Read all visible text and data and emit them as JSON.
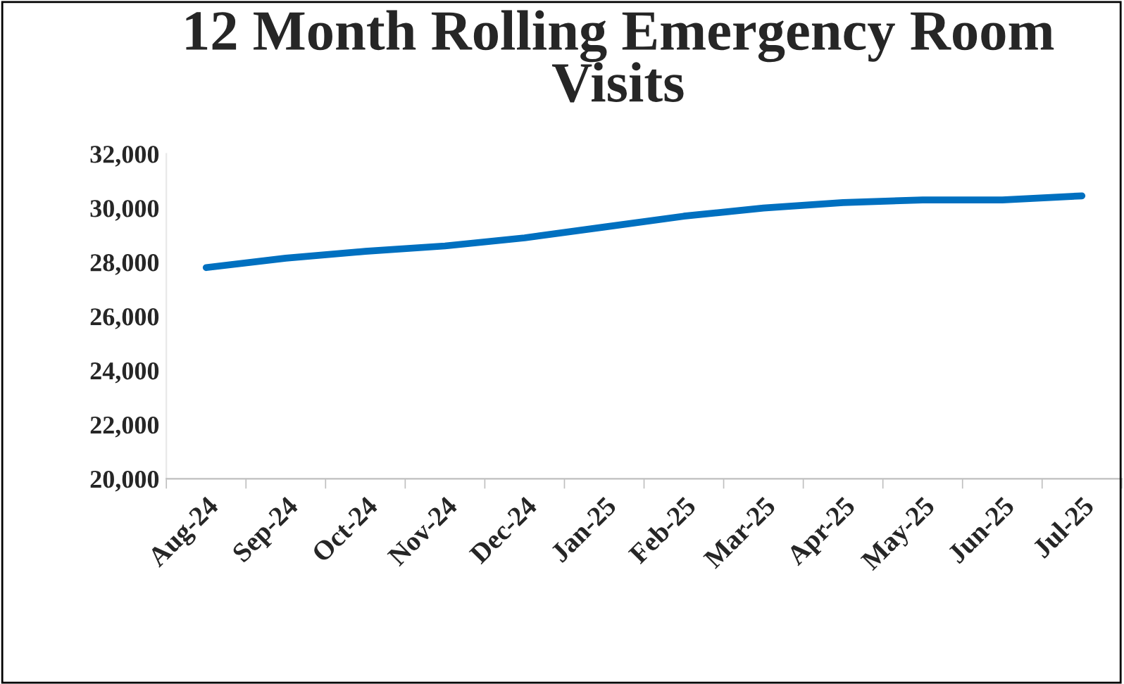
{
  "chart_data": {
    "type": "line",
    "title": "12 Month Rolling Emergency Room Visits",
    "categories": [
      "Aug-24",
      "Sep-24",
      "Oct-24",
      "Nov-24",
      "Dec-24",
      "Jan-25",
      "Feb-25",
      "Mar-25",
      "Apr-25",
      "May-25",
      "Jun-25",
      "Jul-25"
    ],
    "series": [
      {
        "color": "#0070c0",
        "values": [
          27800,
          28150,
          28400,
          28600,
          28900,
          29300,
          29700,
          30000,
          30200,
          30300,
          30300,
          30450
        ]
      }
    ],
    "ylim": [
      20000,
      32000
    ],
    "yticks": [
      {
        "value": 20000,
        "label": "20,000"
      },
      {
        "value": 22000,
        "label": "22,000"
      },
      {
        "value": 24000,
        "label": "24,000"
      },
      {
        "value": 26000,
        "label": "26,000"
      },
      {
        "value": 28000,
        "label": "28,000"
      },
      {
        "value": 30000,
        "label": "30,000"
      },
      {
        "value": 32000,
        "label": "32,000"
      }
    ],
    "grid": false,
    "marker": "none",
    "line_style": "solid"
  }
}
